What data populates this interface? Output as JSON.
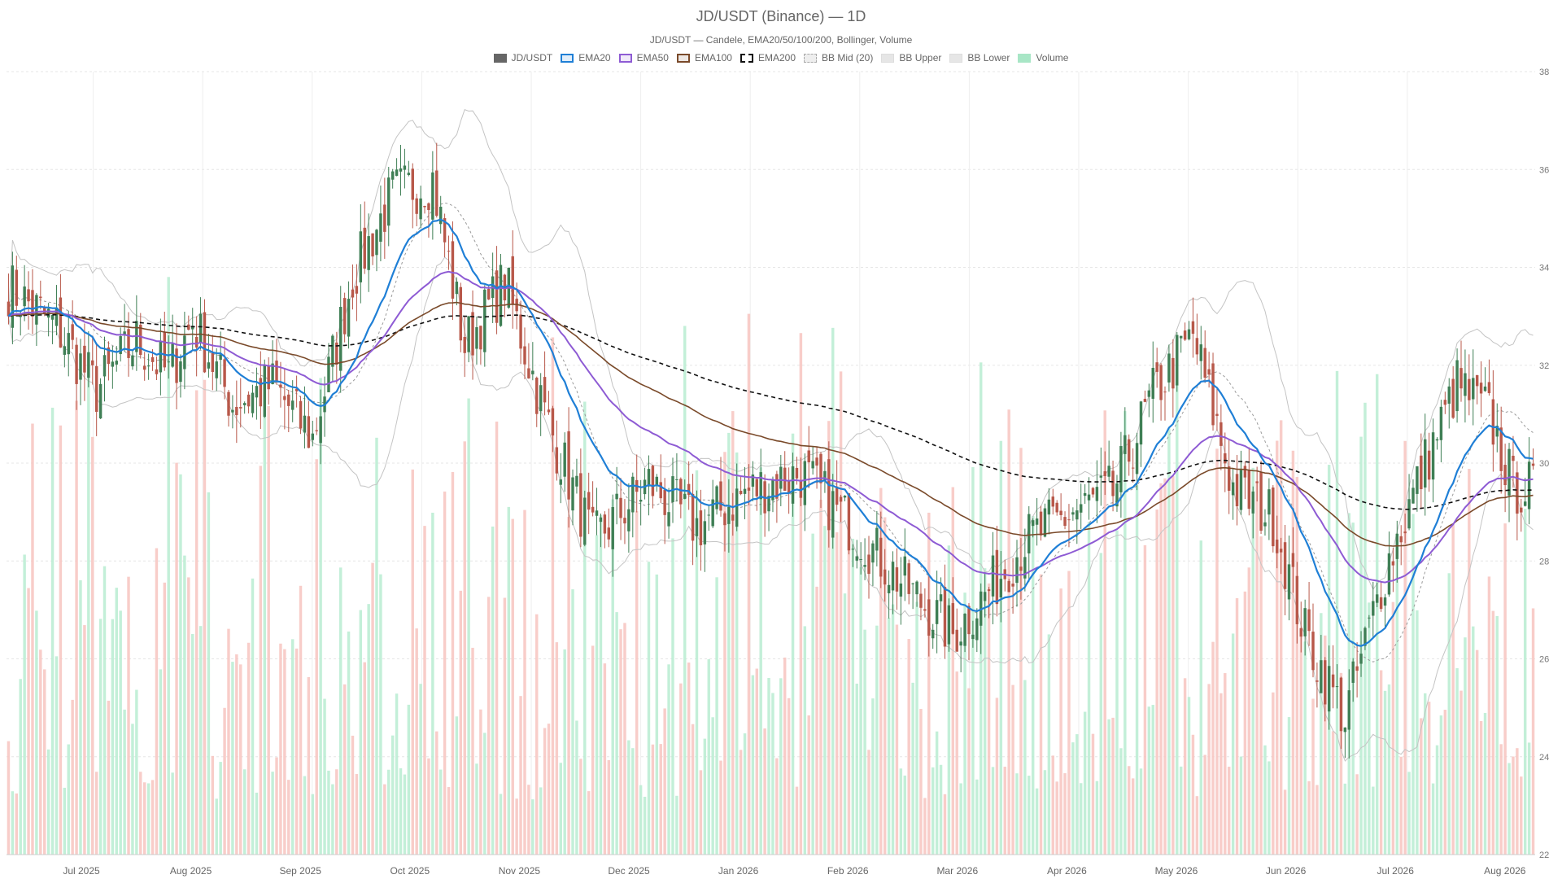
{
  "chart_data": {
    "type": "candlestick",
    "title": "JD/USDT (Binance) — 1D",
    "subtitle": "JD/USDT — Candele, EMA20/50/100/200, Bollinger, Volume",
    "legend": [
      {
        "name": "JD/USDT",
        "color": "#666666",
        "style": "solid-fill"
      },
      {
        "name": "EMA20",
        "color": "#1f7fd6",
        "style": "line"
      },
      {
        "name": "EMA50",
        "color": "#8e5bd4",
        "style": "line"
      },
      {
        "name": "EMA100",
        "color": "#7a4a2a",
        "style": "line"
      },
      {
        "name": "EMA200",
        "color": "#111111",
        "style": "dashed"
      },
      {
        "name": "BB Mid (20)",
        "color": "#aaaaaa",
        "style": "dashed-light"
      },
      {
        "name": "BB Upper",
        "color": "#bbbbbb",
        "style": "light"
      },
      {
        "name": "BB Lower",
        "color": "#bbbbbb",
        "style": "light"
      },
      {
        "name": "Volume",
        "color": "#a8e6c6",
        "style": "fill-green"
      }
    ],
    "x_ticks": [
      "Jul 2025",
      "Aug 2025",
      "Sep 2025",
      "Oct 2025",
      "Nov 2025",
      "Dec 2025",
      "Jan 2026",
      "Feb 2026",
      "Mar 2026",
      "Apr 2026",
      "May 2026",
      "Jun 2026",
      "Jul 2026",
      "Aug 2026"
    ],
    "y_ticks": [
      22,
      24,
      26,
      28,
      30,
      32,
      34,
      36,
      38
    ],
    "ylim": [
      22,
      38
    ],
    "colors": {
      "up": "#3f7f55",
      "down": "#b8584a",
      "vol_up": "#b9ecd1",
      "vol_down": "#f7c4bf"
    },
    "close_anchors": [
      [
        0,
        33.6
      ],
      [
        12,
        32.8
      ],
      [
        22,
        31.5
      ],
      [
        32,
        32.5
      ],
      [
        40,
        31.8
      ],
      [
        46,
        32.9
      ],
      [
        56,
        31.2
      ],
      [
        66,
        31.6
      ],
      [
        76,
        30.5
      ],
      [
        86,
        33.8
      ],
      [
        96,
        35.5
      ],
      [
        106,
        35.8
      ],
      [
        114,
        32.4
      ],
      [
        124,
        33.7
      ],
      [
        134,
        31.0
      ],
      [
        146,
        28.4
      ],
      [
        160,
        29.6
      ],
      [
        172,
        28.7
      ],
      [
        184,
        29.4
      ],
      [
        198,
        29.8
      ],
      [
        212,
        28.6
      ],
      [
        224,
        27.5
      ],
      [
        236,
        26.5
      ],
      [
        244,
        27.3
      ],
      [
        254,
        28.4
      ],
      [
        266,
        29.0
      ],
      [
        276,
        29.4
      ],
      [
        286,
        31.4
      ],
      [
        296,
        32.6
      ],
      [
        306,
        29.5
      ],
      [
        316,
        28.9
      ],
      [
        324,
        26.5
      ],
      [
        334,
        24.8
      ],
      [
        344,
        27.8
      ],
      [
        354,
        30.0
      ],
      [
        362,
        31.6
      ],
      [
        370,
        31.0
      ],
      [
        376,
        29.5
      ],
      [
        381,
        29.5
      ]
    ]
  }
}
